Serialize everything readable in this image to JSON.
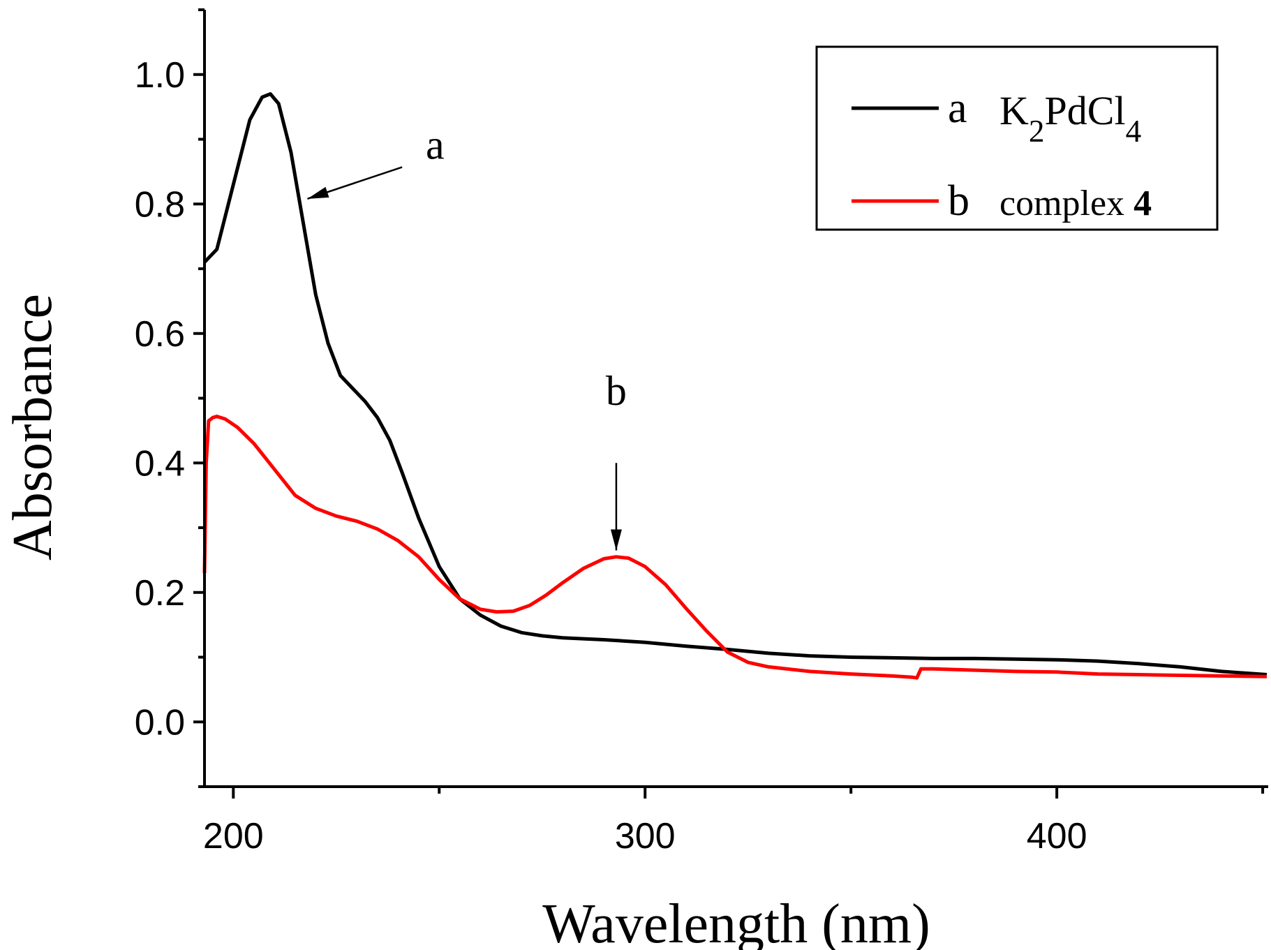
{
  "chart_data": {
    "type": "line",
    "xlabel": "Wavelength (nm)",
    "ylabel": "Absorbance",
    "xlim": [
      193,
      451
    ],
    "ylim": [
      -0.1,
      1.1
    ],
    "xticks": [
      "200",
      "300",
      "400"
    ],
    "yticks": [
      "0.0",
      "0.2",
      "0.4",
      "0.6",
      "0.8",
      "1.0"
    ],
    "grid": false,
    "legend_position": "top-right",
    "series": [
      {
        "letter": "a",
        "name_parts": [
          {
            "text": "K",
            "style": "normal"
          },
          {
            "text": "2",
            "style": "sub"
          },
          {
            "text": "PdCl",
            "style": "normal"
          },
          {
            "text": "4",
            "style": "sub"
          }
        ],
        "color": "#000000",
        "x": [
          193,
          196,
          200,
          204,
          207,
          209,
          211,
          214,
          217,
          220,
          223,
          226,
          229,
          232,
          235,
          238,
          241,
          245,
          250,
          255,
          260,
          265,
          270,
          275,
          280,
          290,
          300,
          310,
          320,
          330,
          340,
          350,
          360,
          370,
          380,
          390,
          400,
          410,
          420,
          430,
          440,
          451
        ],
        "y": [
          0.71,
          0.73,
          0.83,
          0.93,
          0.965,
          0.97,
          0.955,
          0.88,
          0.77,
          0.66,
          0.585,
          0.535,
          0.515,
          0.495,
          0.47,
          0.435,
          0.385,
          0.315,
          0.24,
          0.19,
          0.165,
          0.148,
          0.138,
          0.133,
          0.13,
          0.127,
          0.123,
          0.117,
          0.112,
          0.106,
          0.102,
          0.1,
          0.099,
          0.098,
          0.098,
          0.097,
          0.096,
          0.094,
          0.09,
          0.085,
          0.078,
          0.073
        ]
      },
      {
        "letter": "b",
        "name_parts": [
          {
            "text": "complex ",
            "style": "normal"
          },
          {
            "text": "4",
            "style": "bold"
          }
        ],
        "color": "#ff0000",
        "x": [
          193,
          193.4,
          194,
          195,
          196,
          198,
          201,
          205,
          210,
          215,
          220,
          225,
          230,
          235,
          240,
          245,
          250,
          255,
          260,
          264,
          268,
          272,
          276,
          280,
          285,
          290,
          293,
          296,
          300,
          305,
          310,
          315,
          320,
          325,
          330,
          340,
          350,
          360,
          365,
          366,
          367,
          370,
          380,
          390,
          400,
          410,
          420,
          430,
          440,
          451
        ],
        "y": [
          0.23,
          0.4,
          0.465,
          0.47,
          0.472,
          0.468,
          0.455,
          0.43,
          0.39,
          0.35,
          0.33,
          0.318,
          0.31,
          0.298,
          0.28,
          0.255,
          0.22,
          0.19,
          0.174,
          0.17,
          0.171,
          0.18,
          0.196,
          0.215,
          0.237,
          0.252,
          0.255,
          0.253,
          0.24,
          0.212,
          0.175,
          0.14,
          0.108,
          0.092,
          0.085,
          0.078,
          0.074,
          0.071,
          0.069,
          0.068,
          0.082,
          0.082,
          0.08,
          0.078,
          0.077,
          0.074,
          0.073,
          0.072,
          0.071,
          0.07
        ]
      }
    ],
    "annotations": [
      {
        "label": "a",
        "series": "a",
        "text_x": 249,
        "text_y": 0.87,
        "arrow_from": [
          241,
          0.857
        ],
        "arrow_to": [
          218,
          0.808
        ]
      },
      {
        "label": "b",
        "series": "b",
        "text_x": 293,
        "text_y": 0.49,
        "arrow_from": [
          293,
          0.4
        ],
        "arrow_to": [
          293,
          0.265
        ]
      }
    ]
  }
}
